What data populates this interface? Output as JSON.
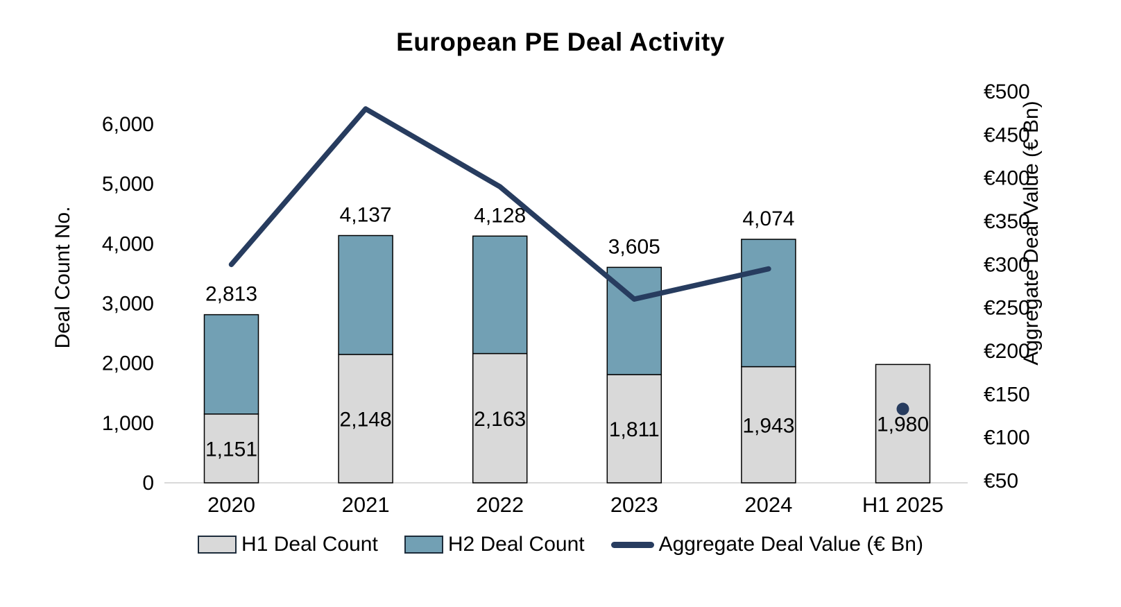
{
  "title": "European PE Deal Activity",
  "colors": {
    "h1_bar": "#d9d9d9",
    "h2_bar": "#72a0b4",
    "bar_border": "#000000",
    "line": "#273c5f",
    "axis_line": "#d9d9d9",
    "text": "#000000"
  },
  "chart_data": {
    "type": "combo-stacked-bar-line",
    "categories": [
      "2020",
      "2021",
      "2022",
      "2023",
      "2024",
      "H1 2025"
    ],
    "series": [
      {
        "name": "H1 Deal Count",
        "type": "bar",
        "color": "#d9d9d9",
        "values": [
          1151,
          2148,
          2163,
          1811,
          1943,
          1980
        ]
      },
      {
        "name": "H2 Deal Count",
        "type": "bar",
        "color": "#72a0b4",
        "values": [
          1662,
          1989,
          1965,
          1794,
          2131,
          null
        ]
      },
      {
        "name": "Aggregate Deal Value (€ Bn)",
        "type": "line",
        "color": "#273c5f",
        "values": [
          300,
          480,
          390,
          260,
          295,
          133
        ],
        "note": "values estimated from right axis; H1 2025 shown as single point marker"
      }
    ],
    "total_labels": [
      "2,813",
      "4,137",
      "4,128",
      "3,605",
      "4,074",
      null
    ],
    "h1_labels": [
      "1,151",
      "2,148",
      "2,163",
      "1,811",
      "1,943",
      "1,980"
    ],
    "left_axis": {
      "title": "Deal Count No.",
      "ticks": [
        "0",
        "1,000",
        "2,000",
        "3,000",
        "4,000",
        "5,000",
        "6,000"
      ],
      "min": 0,
      "max": 6000,
      "step": 1000
    },
    "right_axis": {
      "title": "Aggregate Deal Value (€ Bn)",
      "ticks": [
        "€50",
        "€100",
        "€150",
        "€200",
        "€250",
        "€300",
        "€350",
        "€400",
        "€450",
        "€500"
      ],
      "min": 50,
      "max": 500,
      "step": 50
    },
    "legend": [
      "H1 Deal Count",
      "H2 Deal Count",
      "Aggregate Deal Value (€ Bn)"
    ],
    "grid": false,
    "legend_position": "bottom-center"
  }
}
